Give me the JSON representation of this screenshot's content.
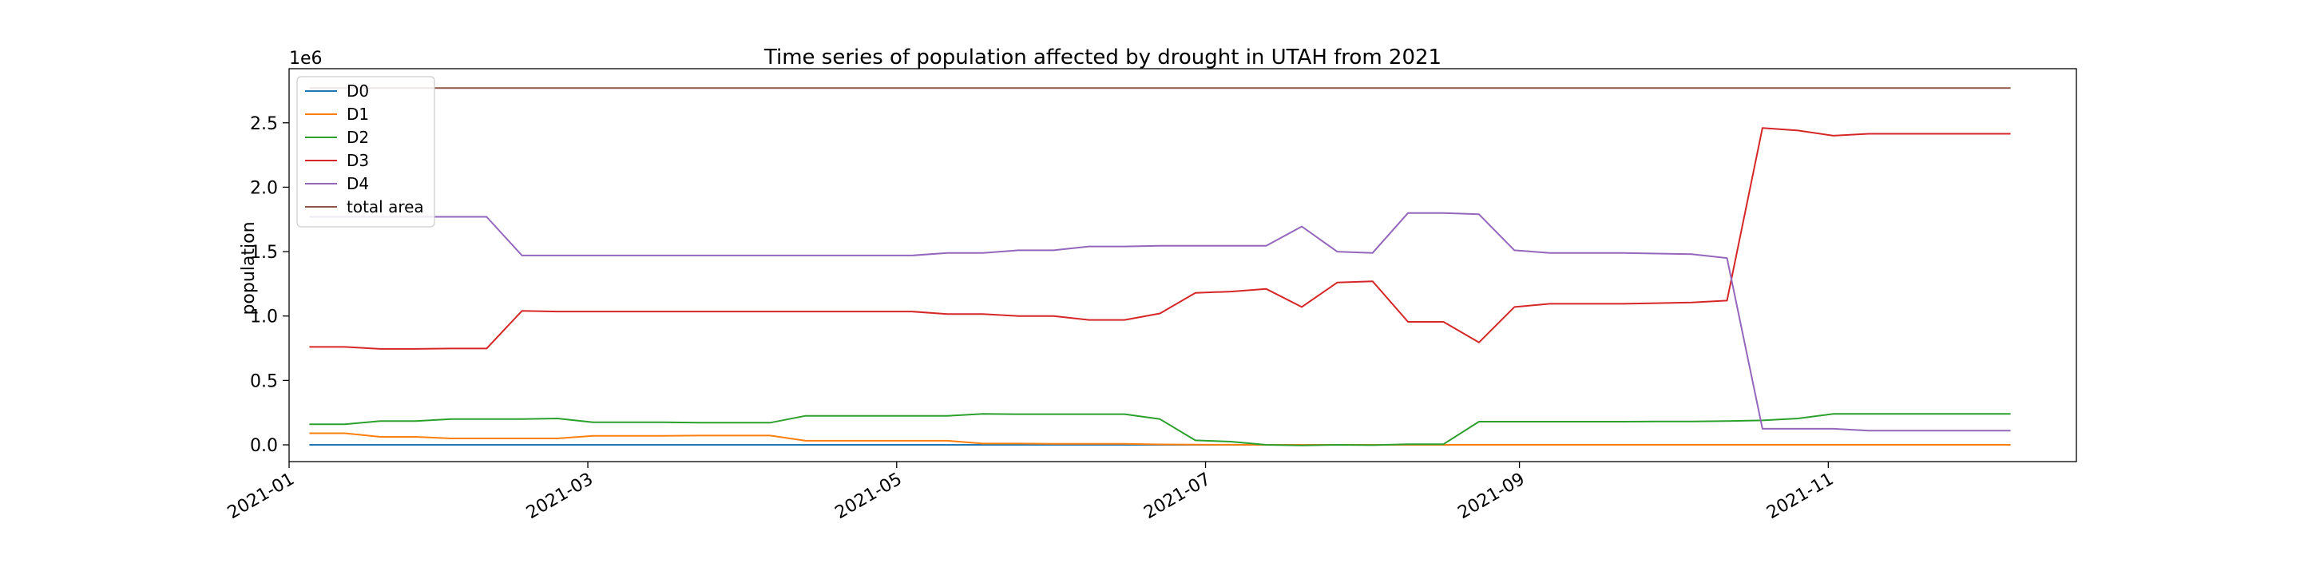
{
  "chart_data": {
    "type": "line",
    "title": "Time series of population affected by drought in UTAH from 2021",
    "xlabel": "",
    "ylabel": "population",
    "y_multiplier_label": "1e6",
    "xlim": [
      "2021-01-01",
      "2021-12-20"
    ],
    "ylim": [
      -130000,
      2920000
    ],
    "x_ticks": [
      "2021-01",
      "2021-03",
      "2021-05",
      "2021-07",
      "2021-09",
      "2021-11"
    ],
    "y_ticks": [
      0.0,
      0.5,
      1.0,
      1.5,
      2.0,
      2.5
    ],
    "y_tick_labels": [
      "0.0",
      "0.5",
      "1.0",
      "1.5",
      "2.0",
      "2.5"
    ],
    "grid": false,
    "legend_position": "top-left",
    "series": [
      {
        "name": "D0",
        "color": "#1f77b4",
        "points": [
          [
            "2021-01-05",
            0
          ],
          [
            "2021-12-07",
            0
          ]
        ]
      },
      {
        "name": "D1",
        "color": "#ff7f0e",
        "points": [
          [
            "2021-01-05",
            90000
          ],
          [
            "2021-01-12",
            90000
          ],
          [
            "2021-01-19",
            62000
          ],
          [
            "2021-01-26",
            62000
          ],
          [
            "2021-02-02",
            50000
          ],
          [
            "2021-02-09",
            50000
          ],
          [
            "2021-02-16",
            50000
          ],
          [
            "2021-02-23",
            50000
          ],
          [
            "2021-03-02",
            70000
          ],
          [
            "2021-03-09",
            70000
          ],
          [
            "2021-03-16",
            70000
          ],
          [
            "2021-03-23",
            72000
          ],
          [
            "2021-03-30",
            72000
          ],
          [
            "2021-04-06",
            72000
          ],
          [
            "2021-04-13",
            32000
          ],
          [
            "2021-04-20",
            32000
          ],
          [
            "2021-04-27",
            32000
          ],
          [
            "2021-05-04",
            32000
          ],
          [
            "2021-05-11",
            32000
          ],
          [
            "2021-05-18",
            10000
          ],
          [
            "2021-05-25",
            10000
          ],
          [
            "2021-06-01",
            8000
          ],
          [
            "2021-06-08",
            8000
          ],
          [
            "2021-06-15",
            8000
          ],
          [
            "2021-06-22",
            3000
          ],
          [
            "2021-06-29",
            2000
          ],
          [
            "2021-07-06",
            1000
          ],
          [
            "2021-07-13",
            0
          ],
          [
            "2021-12-07",
            0
          ]
        ]
      },
      {
        "name": "D2",
        "color": "#2ca02c",
        "points": [
          [
            "2021-01-05",
            160000
          ],
          [
            "2021-01-12",
            160000
          ],
          [
            "2021-01-19",
            185000
          ],
          [
            "2021-01-26",
            185000
          ],
          [
            "2021-02-02",
            200000
          ],
          [
            "2021-02-09",
            200000
          ],
          [
            "2021-02-16",
            200000
          ],
          [
            "2021-02-23",
            205000
          ],
          [
            "2021-03-02",
            175000
          ],
          [
            "2021-03-09",
            175000
          ],
          [
            "2021-03-16",
            175000
          ],
          [
            "2021-03-23",
            172000
          ],
          [
            "2021-03-30",
            172000
          ],
          [
            "2021-04-06",
            172000
          ],
          [
            "2021-04-13",
            225000
          ],
          [
            "2021-04-20",
            225000
          ],
          [
            "2021-04-27",
            225000
          ],
          [
            "2021-05-04",
            225000
          ],
          [
            "2021-05-11",
            225000
          ],
          [
            "2021-05-18",
            240000
          ],
          [
            "2021-05-25",
            238000
          ],
          [
            "2021-06-01",
            238000
          ],
          [
            "2021-06-08",
            238000
          ],
          [
            "2021-06-15",
            238000
          ],
          [
            "2021-06-22",
            200000
          ],
          [
            "2021-06-29",
            35000
          ],
          [
            "2021-07-06",
            25000
          ],
          [
            "2021-07-13",
            0
          ],
          [
            "2021-07-20",
            -5000
          ],
          [
            "2021-07-27",
            0
          ],
          [
            "2021-08-03",
            -2000
          ],
          [
            "2021-08-10",
            5000
          ],
          [
            "2021-08-17",
            5000
          ],
          [
            "2021-08-24",
            180000
          ],
          [
            "2021-08-31",
            180000
          ],
          [
            "2021-09-07",
            180000
          ],
          [
            "2021-09-14",
            180000
          ],
          [
            "2021-09-21",
            180000
          ],
          [
            "2021-09-28",
            182000
          ],
          [
            "2021-10-05",
            182000
          ],
          [
            "2021-10-12",
            185000
          ],
          [
            "2021-10-19",
            190000
          ],
          [
            "2021-10-26",
            205000
          ],
          [
            "2021-11-02",
            240000
          ],
          [
            "2021-11-09",
            240000
          ],
          [
            "2021-11-16",
            240000
          ],
          [
            "2021-11-23",
            240000
          ],
          [
            "2021-11-30",
            240000
          ],
          [
            "2021-12-07",
            240000
          ]
        ]
      },
      {
        "name": "D3",
        "color": "#d62728",
        "points": [
          [
            "2021-01-05",
            760000
          ],
          [
            "2021-01-12",
            760000
          ],
          [
            "2021-01-19",
            745000
          ],
          [
            "2021-01-26",
            745000
          ],
          [
            "2021-02-02",
            748000
          ],
          [
            "2021-02-09",
            748000
          ],
          [
            "2021-02-16",
            1040000
          ],
          [
            "2021-02-23",
            1035000
          ],
          [
            "2021-03-02",
            1035000
          ],
          [
            "2021-03-09",
            1035000
          ],
          [
            "2021-03-16",
            1035000
          ],
          [
            "2021-03-23",
            1035000
          ],
          [
            "2021-03-30",
            1035000
          ],
          [
            "2021-04-06",
            1035000
          ],
          [
            "2021-04-13",
            1035000
          ],
          [
            "2021-04-20",
            1035000
          ],
          [
            "2021-04-27",
            1035000
          ],
          [
            "2021-05-04",
            1035000
          ],
          [
            "2021-05-11",
            1015000
          ],
          [
            "2021-05-18",
            1015000
          ],
          [
            "2021-05-25",
            1000000
          ],
          [
            "2021-06-01",
            1000000
          ],
          [
            "2021-06-08",
            970000
          ],
          [
            "2021-06-15",
            970000
          ],
          [
            "2021-06-22",
            1020000
          ],
          [
            "2021-06-29",
            1180000
          ],
          [
            "2021-07-06",
            1190000
          ],
          [
            "2021-07-13",
            1210000
          ],
          [
            "2021-07-20",
            1070000
          ],
          [
            "2021-07-27",
            1260000
          ],
          [
            "2021-08-03",
            1270000
          ],
          [
            "2021-08-10",
            955000
          ],
          [
            "2021-08-17",
            955000
          ],
          [
            "2021-08-24",
            795000
          ],
          [
            "2021-08-31",
            1070000
          ],
          [
            "2021-09-07",
            1095000
          ],
          [
            "2021-09-14",
            1095000
          ],
          [
            "2021-09-21",
            1095000
          ],
          [
            "2021-09-28",
            1100000
          ],
          [
            "2021-10-05",
            1105000
          ],
          [
            "2021-10-12",
            1120000
          ],
          [
            "2021-10-19",
            2460000
          ],
          [
            "2021-10-26",
            2440000
          ],
          [
            "2021-11-02",
            2400000
          ],
          [
            "2021-11-09",
            2415000
          ],
          [
            "2021-11-16",
            2415000
          ],
          [
            "2021-11-23",
            2415000
          ],
          [
            "2021-11-30",
            2415000
          ],
          [
            "2021-12-07",
            2415000
          ]
        ]
      },
      {
        "name": "D4",
        "color": "#9467bd",
        "points": [
          [
            "2021-01-05",
            1770000
          ],
          [
            "2021-01-12",
            1770000
          ],
          [
            "2021-01-19",
            1770000
          ],
          [
            "2021-01-26",
            1770000
          ],
          [
            "2021-02-02",
            1770000
          ],
          [
            "2021-02-09",
            1770000
          ],
          [
            "2021-02-16",
            1470000
          ],
          [
            "2021-02-23",
            1470000
          ],
          [
            "2021-03-02",
            1470000
          ],
          [
            "2021-03-09",
            1470000
          ],
          [
            "2021-03-16",
            1470000
          ],
          [
            "2021-03-23",
            1470000
          ],
          [
            "2021-03-30",
            1470000
          ],
          [
            "2021-04-06",
            1470000
          ],
          [
            "2021-04-13",
            1470000
          ],
          [
            "2021-04-20",
            1470000
          ],
          [
            "2021-04-27",
            1470000
          ],
          [
            "2021-05-04",
            1470000
          ],
          [
            "2021-05-11",
            1490000
          ],
          [
            "2021-05-18",
            1490000
          ],
          [
            "2021-05-25",
            1510000
          ],
          [
            "2021-06-01",
            1510000
          ],
          [
            "2021-06-08",
            1540000
          ],
          [
            "2021-06-15",
            1540000
          ],
          [
            "2021-06-22",
            1545000
          ],
          [
            "2021-06-29",
            1545000
          ],
          [
            "2021-07-06",
            1545000
          ],
          [
            "2021-07-13",
            1545000
          ],
          [
            "2021-07-20",
            1695000
          ],
          [
            "2021-07-27",
            1500000
          ],
          [
            "2021-08-03",
            1490000
          ],
          [
            "2021-08-10",
            1800000
          ],
          [
            "2021-08-17",
            1800000
          ],
          [
            "2021-08-24",
            1790000
          ],
          [
            "2021-08-31",
            1510000
          ],
          [
            "2021-09-07",
            1490000
          ],
          [
            "2021-09-14",
            1490000
          ],
          [
            "2021-09-21",
            1490000
          ],
          [
            "2021-09-28",
            1485000
          ],
          [
            "2021-10-05",
            1480000
          ],
          [
            "2021-10-12",
            1450000
          ],
          [
            "2021-10-19",
            125000
          ],
          [
            "2021-10-26",
            125000
          ],
          [
            "2021-11-02",
            125000
          ],
          [
            "2021-11-09",
            110000
          ],
          [
            "2021-11-16",
            110000
          ],
          [
            "2021-11-23",
            110000
          ],
          [
            "2021-11-30",
            110000
          ],
          [
            "2021-12-07",
            110000
          ]
        ]
      },
      {
        "name": "total area",
        "color": "#8c564b",
        "points": [
          [
            "2021-01-05",
            2770000
          ],
          [
            "2021-12-07",
            2770000
          ]
        ]
      }
    ]
  }
}
